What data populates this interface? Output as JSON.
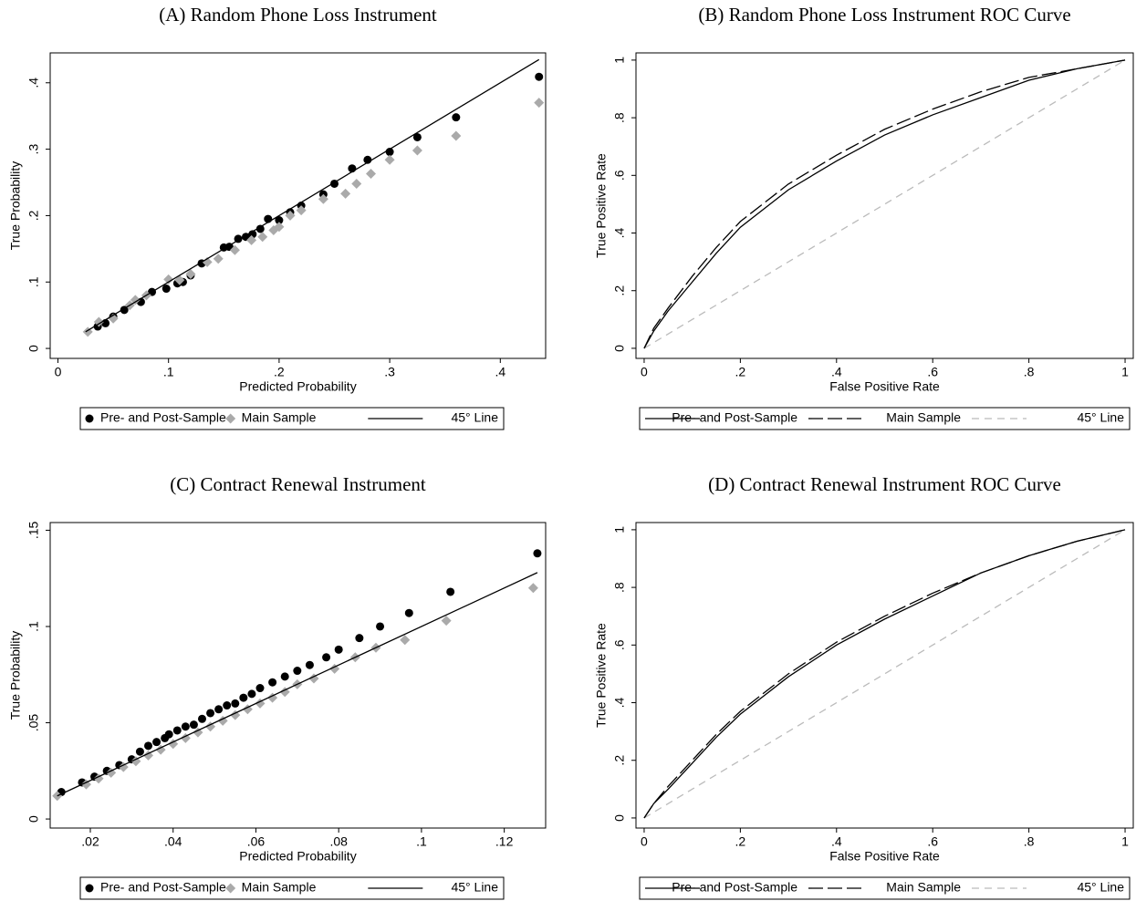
{
  "chart_data": [
    {
      "type": "scatter",
      "title": "(A) Random Phone Loss Instrument",
      "xlabel": "Predicted Probability",
      "ylabel": "True Probability",
      "xlim": [
        -0.007,
        0.441
      ],
      "ylim": [
        -0.015,
        0.445
      ],
      "xticks": [
        0,
        {
          "value": 0.1,
          "label": ".1"
        },
        {
          "value": 0.2,
          "label": ".2"
        },
        {
          "value": 0.3,
          "label": ".3"
        },
        {
          "value": 0.4,
          "label": ".4"
        }
      ],
      "yticks": [
        0,
        {
          "value": 0.1,
          "label": ".1"
        },
        {
          "value": 0.2,
          "label": ".2"
        },
        {
          "value": 0.3,
          "label": ".3"
        },
        {
          "value": 0.4,
          "label": ".4"
        }
      ],
      "legend": "bottom",
      "series": [
        {
          "name": "Pre- and Post-Sample",
          "color": "#000000",
          "marker": "circle",
          "x": [
            0.036,
            0.043,
            0.05,
            0.06,
            0.075,
            0.085,
            0.098,
            0.108,
            0.113,
            0.12,
            0.13,
            0.15,
            0.155,
            0.163,
            0.17,
            0.176,
            0.183,
            0.19,
            0.2,
            0.21,
            0.22,
            0.24,
            0.25,
            0.266,
            0.28,
            0.3,
            0.325,
            0.36,
            0.435
          ],
          "values": [
            0.033,
            0.038,
            0.048,
            0.058,
            0.07,
            0.085,
            0.09,
            0.098,
            0.1,
            0.11,
            0.128,
            0.152,
            0.153,
            0.165,
            0.168,
            0.172,
            0.18,
            0.195,
            0.193,
            0.205,
            0.215,
            0.232,
            0.248,
            0.271,
            0.284,
            0.296,
            0.318,
            0.348,
            0.409
          ]
        },
        {
          "name": "Main Sample",
          "color": "#aaaaaa",
          "marker": "diamond",
          "x": [
            0.027,
            0.037,
            0.05,
            0.065,
            0.07,
            0.08,
            0.1,
            0.11,
            0.12,
            0.135,
            0.145,
            0.16,
            0.175,
            0.185,
            0.195,
            0.2,
            0.21,
            0.22,
            0.24,
            0.26,
            0.27,
            0.283,
            0.3,
            0.325,
            0.36,
            0.435
          ],
          "values": [
            0.025,
            0.04,
            0.045,
            0.065,
            0.073,
            0.08,
            0.104,
            0.103,
            0.112,
            0.13,
            0.135,
            0.148,
            0.163,
            0.168,
            0.178,
            0.183,
            0.2,
            0.208,
            0.225,
            0.233,
            0.248,
            0.263,
            0.284,
            0.298,
            0.32,
            0.37
          ]
        },
        {
          "name": "45° Line",
          "color": "#000000",
          "marker": "line",
          "x": [
            0.025,
            0.435
          ],
          "values": [
            0.025,
            0.435
          ]
        }
      ]
    },
    {
      "type": "line",
      "title": "(B) Random Phone Loss Instrument ROC Curve",
      "xlabel": "False Positive Rate",
      "ylabel": "True Positive Rate",
      "xlim": [
        -0.017,
        1.017
      ],
      "ylim": [
        -0.035,
        1.025
      ],
      "xticks": [
        0,
        {
          "value": 0.2,
          "label": ".2"
        },
        {
          "value": 0.4,
          "label": ".4"
        },
        {
          "value": 0.6,
          "label": ".6"
        },
        {
          "value": 0.8,
          "label": ".8"
        },
        1
      ],
      "yticks": [
        0,
        {
          "value": 0.2,
          "label": ".2"
        },
        {
          "value": 0.4,
          "label": ".4"
        },
        {
          "value": 0.6,
          "label": ".6"
        },
        {
          "value": 0.8,
          "label": ".8"
        },
        1
      ],
      "legend": "bottom",
      "x": [
        0,
        0.02,
        0.05,
        0.1,
        0.15,
        0.2,
        0.3,
        0.4,
        0.5,
        0.6,
        0.7,
        0.8,
        0.9,
        1
      ],
      "series": [
        {
          "name": "Pre- and Post-Sample",
          "color": "#000000",
          "dash": "solid",
          "values": [
            0,
            0.06,
            0.13,
            0.23,
            0.33,
            0.42,
            0.55,
            0.65,
            0.74,
            0.81,
            0.87,
            0.93,
            0.97,
            1
          ]
        },
        {
          "name": "Main Sample",
          "color": "#000000",
          "dash": "longdash",
          "values": [
            0,
            0.07,
            0.14,
            0.25,
            0.35,
            0.44,
            0.57,
            0.67,
            0.76,
            0.83,
            0.89,
            0.94,
            0.97,
            1
          ]
        },
        {
          "name": "45° Line",
          "color": "#bbbbbb",
          "dash": "dash",
          "values": [
            0,
            0.02,
            0.05,
            0.1,
            0.15,
            0.2,
            0.3,
            0.4,
            0.5,
            0.6,
            0.7,
            0.8,
            0.9,
            1
          ]
        }
      ]
    },
    {
      "type": "scatter",
      "title": "(C) Contract Renewal Instrument",
      "xlabel": "Predicted Probability",
      "ylabel": "True Probability",
      "xlim": [
        0.0103,
        0.13
      ],
      "ylim": [
        -0.0047,
        0.154
      ],
      "xticks": [
        {
          "value": 0.02,
          "label": ".02"
        },
        {
          "value": 0.04,
          "label": ".04"
        },
        {
          "value": 0.06,
          "label": ".06"
        },
        {
          "value": 0.08,
          "label": ".08"
        },
        {
          "value": 0.1,
          "label": ".1"
        },
        {
          "value": 0.12,
          "label": ".12"
        }
      ],
      "yticks": [
        0,
        {
          "value": 0.05,
          "label": ".05"
        },
        {
          "value": 0.1,
          "label": ".1"
        },
        {
          "value": 0.15,
          "label": ".15"
        }
      ],
      "legend": "bottom",
      "series": [
        {
          "name": "Pre- and Post-Sample",
          "color": "#000000",
          "marker": "circle",
          "x": [
            0.013,
            0.018,
            0.021,
            0.024,
            0.027,
            0.03,
            0.032,
            0.034,
            0.036,
            0.038,
            0.039,
            0.041,
            0.043,
            0.045,
            0.047,
            0.049,
            0.051,
            0.053,
            0.055,
            0.057,
            0.059,
            0.061,
            0.064,
            0.067,
            0.07,
            0.073,
            0.077,
            0.08,
            0.085,
            0.09,
            0.097,
            0.107,
            0.128
          ],
          "values": [
            0.014,
            0.019,
            0.022,
            0.025,
            0.028,
            0.031,
            0.035,
            0.038,
            0.04,
            0.042,
            0.044,
            0.046,
            0.048,
            0.049,
            0.052,
            0.055,
            0.057,
            0.059,
            0.06,
            0.063,
            0.065,
            0.068,
            0.071,
            0.074,
            0.077,
            0.08,
            0.084,
            0.088,
            0.094,
            0.1,
            0.107,
            0.118,
            0.138
          ]
        },
        {
          "name": "Main Sample",
          "color": "#aaaaaa",
          "marker": "diamond",
          "x": [
            0.012,
            0.019,
            0.022,
            0.025,
            0.028,
            0.031,
            0.034,
            0.037,
            0.04,
            0.043,
            0.046,
            0.049,
            0.052,
            0.055,
            0.058,
            0.061,
            0.064,
            0.067,
            0.07,
            0.074,
            0.079,
            0.084,
            0.089,
            0.096,
            0.106,
            0.127
          ],
          "values": [
            0.012,
            0.018,
            0.021,
            0.024,
            0.027,
            0.03,
            0.033,
            0.036,
            0.039,
            0.042,
            0.045,
            0.048,
            0.051,
            0.054,
            0.057,
            0.06,
            0.063,
            0.066,
            0.07,
            0.073,
            0.078,
            0.084,
            0.089,
            0.093,
            0.103,
            0.12
          ]
        },
        {
          "name": "45° Line",
          "color": "#000000",
          "marker": "line",
          "x": [
            0.012,
            0.128
          ],
          "values": [
            0.012,
            0.128
          ]
        }
      ]
    },
    {
      "type": "line",
      "title": "(D) Contract Renewal Instrument ROC Curve",
      "xlabel": "False Positive Rate",
      "ylabel": "True Positive Rate",
      "xlim": [
        -0.017,
        1.017
      ],
      "ylim": [
        -0.035,
        1.025
      ],
      "xticks": [
        0,
        {
          "value": 0.2,
          "label": ".2"
        },
        {
          "value": 0.4,
          "label": ".4"
        },
        {
          "value": 0.6,
          "label": ".6"
        },
        {
          "value": 0.8,
          "label": ".8"
        },
        1
      ],
      "yticks": [
        0,
        {
          "value": 0.2,
          "label": ".2"
        },
        {
          "value": 0.4,
          "label": ".4"
        },
        {
          "value": 0.6,
          "label": ".6"
        },
        {
          "value": 0.8,
          "label": ".8"
        },
        1
      ],
      "legend": "bottom",
      "x": [
        0,
        0.02,
        0.05,
        0.1,
        0.15,
        0.2,
        0.3,
        0.4,
        0.5,
        0.6,
        0.7,
        0.8,
        0.9,
        1
      ],
      "series": [
        {
          "name": "Pre- and Post-Sample",
          "color": "#000000",
          "dash": "solid",
          "values": [
            0,
            0.05,
            0.1,
            0.19,
            0.28,
            0.36,
            0.49,
            0.6,
            0.69,
            0.77,
            0.85,
            0.91,
            0.96,
            1
          ]
        },
        {
          "name": "Main Sample",
          "color": "#000000",
          "dash": "longdash",
          "values": [
            0,
            0.05,
            0.11,
            0.2,
            0.29,
            0.37,
            0.5,
            0.61,
            0.7,
            0.78,
            0.85,
            0.91,
            0.96,
            1
          ]
        },
        {
          "name": "45° Line",
          "color": "#bbbbbb",
          "dash": "dash",
          "values": [
            0,
            0.02,
            0.05,
            0.1,
            0.15,
            0.2,
            0.3,
            0.4,
            0.5,
            0.6,
            0.7,
            0.8,
            0.9,
            1
          ]
        }
      ]
    }
  ]
}
